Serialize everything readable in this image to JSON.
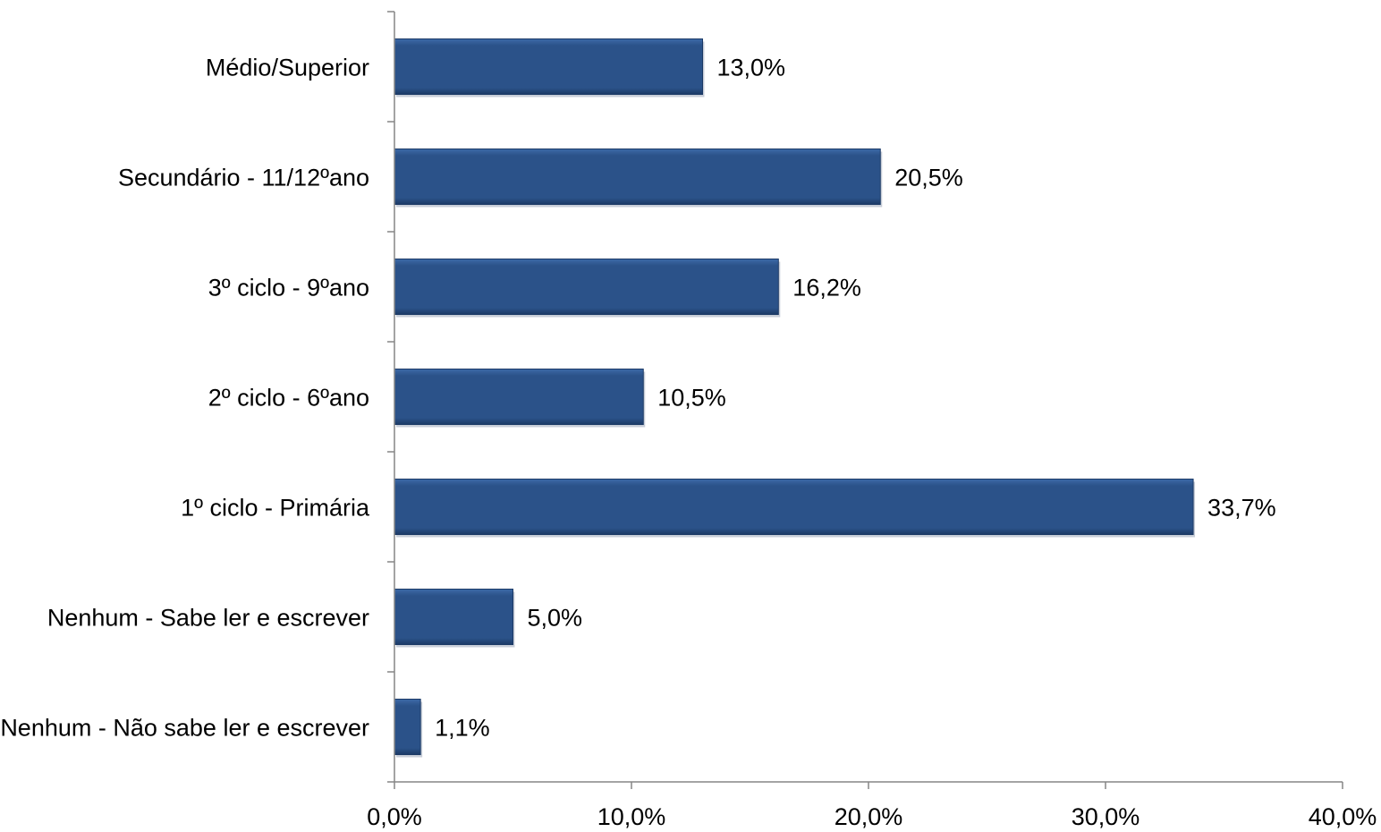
{
  "chart_data": {
    "type": "bar",
    "orientation": "horizontal",
    "categories": [
      "Médio/Superior",
      "Secundário - 11/12ºano",
      "3º ciclo - 9ºano",
      "2º ciclo - 6ºano",
      "1º ciclo - Primária",
      "Nenhum - Sabe ler e escrever",
      "Nenhum - Não sabe ler e escrever"
    ],
    "values": [
      13.0,
      20.5,
      16.2,
      10.5,
      33.7,
      5.0,
      1.1
    ],
    "value_labels": [
      "13,0%",
      "20,5%",
      "16,2%",
      "10,5%",
      "33,7%",
      "5,0%",
      "1,1%"
    ],
    "x_ticks": [
      0,
      10,
      20,
      30,
      40
    ],
    "x_tick_labels": [
      "0,0%",
      "10,0%",
      "20,0%",
      "30,0%",
      "40,0%"
    ],
    "xlim": [
      0,
      40
    ],
    "title": "",
    "xlabel": "",
    "ylabel": "",
    "grid": false,
    "legend": "none",
    "colors": {
      "bar": "#2b5289",
      "bar_light": "#3d6aa8",
      "bar_dark": "#1c3a66",
      "axis": "#868686"
    }
  }
}
